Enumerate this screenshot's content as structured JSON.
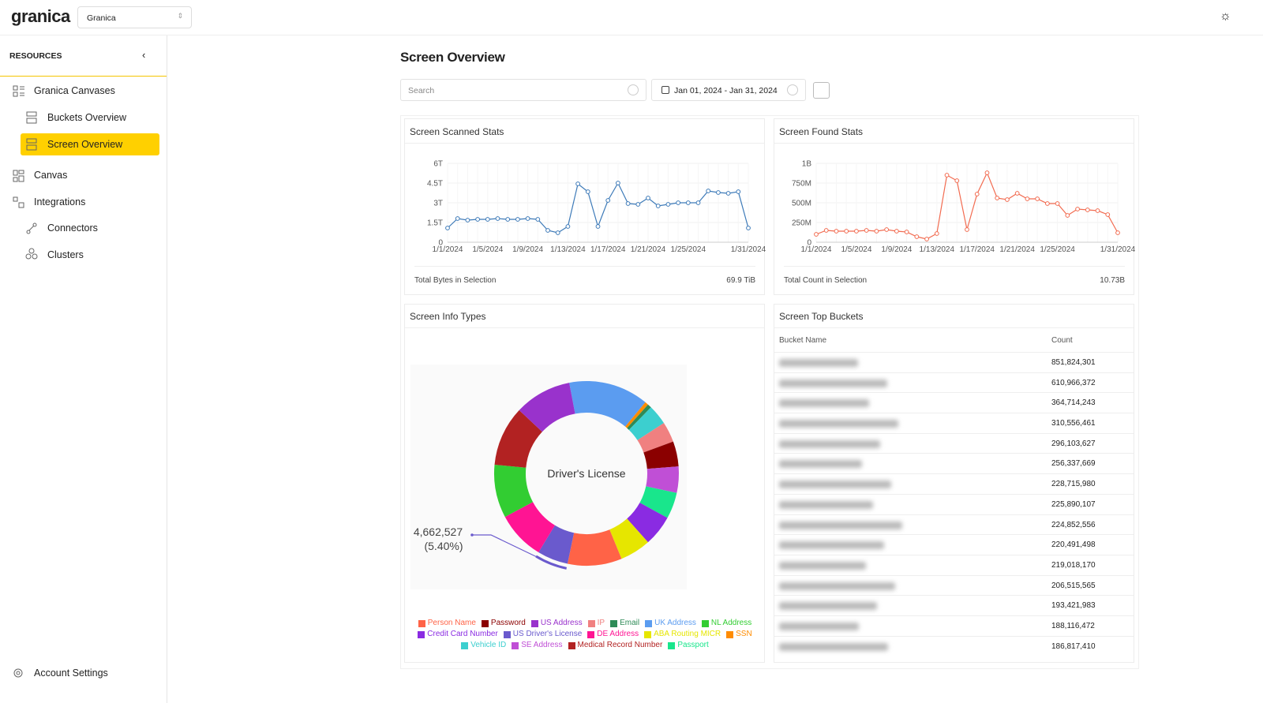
{
  "header": {
    "logo": "granica",
    "org_select": "Granica"
  },
  "sidebar": {
    "title": "RESOURCES",
    "items": [
      "Granica Canvases",
      "Buckets Overview",
      "Screen Overview",
      "Canvas",
      "Integrations",
      "Connectors",
      "Clusters"
    ],
    "footer": "Account Settings"
  },
  "page": {
    "title": "Screen Overview",
    "search_placeholder": "Search",
    "date_range": "Jan 01, 2024 - Jan 31, 2024"
  },
  "chart_data": [
    {
      "type": "line",
      "title": "Screen Scanned Stats",
      "categories": [
        "1/1/2024",
        null,
        null,
        null,
        "1/5/2024",
        null,
        null,
        null,
        "1/9/2024",
        null,
        null,
        null,
        "1/13/2024",
        null,
        null,
        null,
        "1/17/2024",
        null,
        null,
        null,
        "1/21/2024",
        null,
        null,
        null,
        "1/25/2024",
        null,
        null,
        null,
        null,
        null,
        "1/31/2024"
      ],
      "series": [
        {
          "color": "#3d7ab8",
          "values": [
            1.08,
            1.8,
            1.68,
            1.74,
            1.74,
            1.8,
            1.74,
            1.74,
            1.8,
            1.74,
            0.9,
            0.72,
            1.2,
            4.44,
            3.84,
            1.2,
            3.18,
            4.5,
            2.94,
            2.88,
            3.36,
            2.76,
            2.88,
            3.0,
            3.0,
            3.0,
            3.9,
            3.78,
            3.72,
            3.84,
            1.08
          ]
        }
      ],
      "ylim": [
        0,
        6
      ],
      "yticks": [
        0,
        {
          "value": 1.5,
          "label": "1.5T"
        },
        {
          "value": 3,
          "label": "3T"
        },
        {
          "value": 4.5,
          "label": "4.5T"
        },
        {
          "value": 6,
          "label": "6T"
        }
      ],
      "grid": true,
      "summary_label": "Total Bytes in Selection",
      "summary_value": "69.9 TiB"
    },
    {
      "type": "line",
      "title": "Screen Found Stats",
      "categories": [
        "1/1/2024",
        null,
        null,
        null,
        "1/5/2024",
        null,
        null,
        null,
        "1/9/2024",
        null,
        null,
        null,
        "1/13/2024",
        null,
        null,
        null,
        "1/17/2024",
        null,
        null,
        null,
        "1/21/2024",
        null,
        null,
        null,
        "1/25/2024",
        null,
        null,
        null,
        null,
        null,
        "1/31/2024"
      ],
      "series": [
        {
          "color": "#f26b50",
          "values": [
            100,
            150,
            140,
            140,
            140,
            150,
            140,
            160,
            140,
            130,
            70,
            40,
            110,
            850,
            780,
            160,
            610,
            880,
            560,
            540,
            620,
            550,
            550,
            490,
            490,
            340,
            420,
            410,
            400,
            350,
            120
          ]
        }
      ],
      "ylim": [
        0,
        1000
      ],
      "yticks": [
        0,
        {
          "value": 250,
          "label": "250M"
        },
        {
          "value": 500,
          "label": "500M"
        },
        {
          "value": 750,
          "label": "750M"
        },
        {
          "value": 1000,
          "label": "1B"
        }
      ],
      "grid": true,
      "summary_label": "Total Count in Selection",
      "summary_value": "10.73B"
    },
    {
      "type": "pie",
      "title": "Screen Info Types",
      "center_label": "Driver's License",
      "categories": [
        "UK Address",
        "SSN",
        "Email",
        "Vehicle ID",
        "IP",
        "Password",
        "SE Address",
        "Passport",
        "Credit Card Number",
        "ABA Routing MICR",
        "Person Name",
        "US Driver's License",
        "DE Address",
        "NL Address",
        "Medical Record Number",
        "US Address"
      ],
      "colors": [
        "#5b9cf0",
        "#ff8c00",
        "#2e8b57",
        "#3ccfcf",
        "#f08080",
        "#8b0000",
        "#c04fd6",
        "#19e68c",
        "#8a2be2",
        "#e6e600",
        "#ff6347",
        "#6a5acd",
        "#ff1493",
        "#32cd32",
        "#b22222",
        "#9932cc"
      ],
      "values": [
        14,
        0.6,
        0.7,
        3.5,
        3.6,
        4.4,
        4.6,
        4.6,
        5.4,
        5.4,
        9.5,
        5.4,
        8.5,
        9.3,
        10.5,
        10
      ],
      "value_labels": [
        null,
        null,
        null,
        null,
        null,
        null,
        null,
        null,
        null,
        null,
        null,
        "(5.40%)",
        null,
        null,
        null,
        null
      ],
      "highlight_count": {
        "value": 4662527,
        "label": "4,662,527"
      },
      "legend_order": [
        "Person Name",
        "Password",
        "US Address",
        "IP",
        "Email",
        "UK Address",
        "NL Address",
        "Credit Card Number",
        "US Driver's License",
        "DE Address",
        "ABA Routing MICR",
        "SSN",
        "Vehicle ID",
        "SE Address",
        "Medical Record Number",
        "Passport"
      ]
    }
  ],
  "table": {
    "title": "Screen Top Buckets",
    "columns": [
      "Bucket Name",
      "Count"
    ],
    "counts": [
      "851,824,301",
      "610,966,372",
      "364,714,243",
      "310,556,461",
      "296,103,627",
      "256,337,669",
      "228,715,980",
      "225,890,107",
      "224,852,556",
      "220,491,498",
      "219,018,170",
      "206,515,565",
      "193,421,983",
      "188,116,472",
      "186,817,410"
    ]
  }
}
